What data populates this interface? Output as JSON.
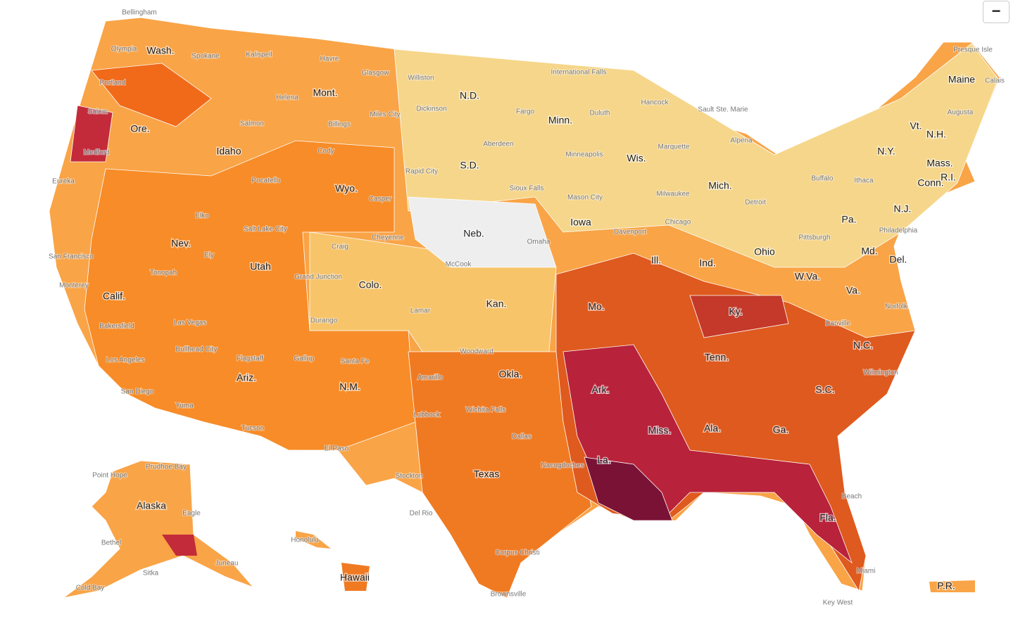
{
  "button": "−",
  "states": [
    "Wash.",
    "Mont.",
    "N.D.",
    "Minn.",
    "Ore.",
    "Idaho",
    "S.D.",
    "Wis.",
    "Mich.",
    "Wyo.",
    "Neb.",
    "Iowa",
    "Nev.",
    "Utah",
    "Colo.",
    "Kan.",
    "Mo.",
    "Ill.",
    "Ind.",
    "Ohio",
    "Calif.",
    "Pa.",
    "N.Y.",
    "Vt.",
    "N.H.",
    "Maine",
    "Mass.",
    "R.I.",
    "Conn.",
    "N.J.",
    "Md.",
    "Del.",
    "W.Va.",
    "Va.",
    "Ky.",
    "Tenn.",
    "N.C.",
    "Okla.",
    "Ariz.",
    "N.M.",
    "Ark.",
    "S.C.",
    "Miss.",
    "Ala.",
    "Ga.",
    "La.",
    "Texas",
    "Fla.",
    "Alaska",
    "Hawaii",
    "P.R."
  ],
  "cities": [
    "Bellingham",
    "Olympia",
    "Spokane",
    "Kalispell",
    "Havre",
    "Glasgow",
    "Williston",
    "International Falls",
    "Presque Isle",
    "Portland",
    "Helena",
    "Billings",
    "Miles City",
    "Dickinson",
    "Fargo",
    "Duluth",
    "Hancock",
    "Sault Ste. Marie",
    "Augusta",
    "Calais",
    "Salem",
    "Salmon",
    "Cody",
    "Aberdeen",
    "Minneapolis",
    "Marquette",
    "Alpena",
    "Medford",
    "Pocatello",
    "Rapid City",
    "Sioux Falls",
    "Buffalo",
    "Ithaca",
    "Eureka",
    "Casper",
    "Mason City",
    "Milwaukee",
    "Detroit",
    "Elko",
    "Salt Lake City",
    "Cheyenne",
    "Chicago",
    "Philadelphia",
    "Craig",
    "Omaha",
    "Davenport",
    "Pittsburgh",
    "San Francisco",
    "Ely",
    "Tonopah",
    "McCook",
    "Grand Junction",
    "Monterey",
    "Las Vegas",
    "Bakersfield",
    "Lamar",
    "Durango",
    "Norfolk",
    "Danville",
    "Bullhead City",
    "Woodward",
    "Flagstaff",
    "Gallup",
    "Santa Fe",
    "Los Angeles",
    "Amarillo",
    "Wilmington",
    "San Diego",
    "Yuma",
    "Lubbock",
    "Wichita Falls",
    "Dallas",
    "Tucson",
    "El Paso",
    "Beach",
    "Point Hope",
    "Prudhoe Bay",
    "Stockton",
    "Nacogdoches",
    "Eagle",
    "Honolulu",
    "Bethel",
    "Del Rio",
    "Corpus Christi",
    "Juneau",
    "Cold Bay",
    "Sitka",
    "Brownsville",
    "Key West",
    "Miami"
  ]
}
